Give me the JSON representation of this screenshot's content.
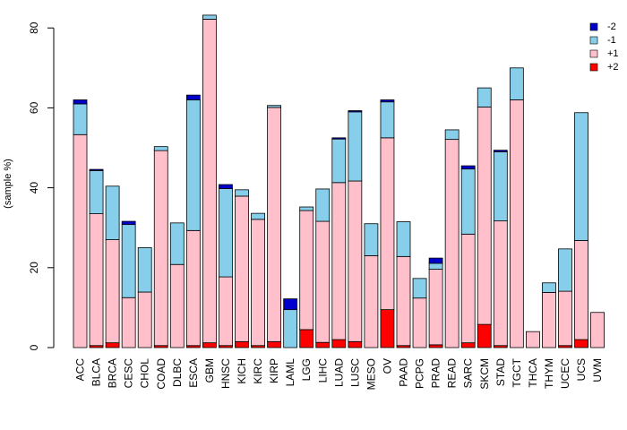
{
  "chart_data": {
    "type": "bar",
    "stacked": true,
    "title": "",
    "xlabel": "",
    "ylabel": "(sample %)",
    "ylim": [
      0,
      83
    ],
    "yticks": [
      0,
      20,
      40,
      60,
      80
    ],
    "stack_order_bottom_to_top": [
      "+2",
      "+1",
      "-1",
      "-2"
    ],
    "categories": [
      "ACC",
      "BLCA",
      "BRCA",
      "CESC",
      "CHOL",
      "COAD",
      "DLBC",
      "ESCA",
      "GBM",
      "HNSC",
      "KICH",
      "KIRC",
      "KIRP",
      "LAML",
      "LGG",
      "LIHC",
      "LUAD",
      "LUSC",
      "MESO",
      "OV",
      "PAAD",
      "PCPG",
      "PRAD",
      "READ",
      "SARC",
      "SKCM",
      "STAD",
      "TGCT",
      "THCA",
      "THYM",
      "UCEC",
      "UCS",
      "UVM"
    ],
    "series": [
      {
        "name": "+2",
        "color": "#ff0000",
        "values": [
          0,
          0.5,
          1.2,
          0,
          0,
          0.5,
          0,
          0.5,
          1.2,
          0.5,
          1.5,
          0.5,
          1.5,
          0,
          4.5,
          1.3,
          2,
          1.5,
          0,
          9.5,
          0.5,
          0,
          0.7,
          0,
          1.2,
          5.8,
          0.5,
          0,
          0,
          0,
          0.5,
          2,
          0
        ]
      },
      {
        "name": "+1",
        "color": "#ffc0cb",
        "values": [
          53.3,
          33.0,
          25.8,
          12.5,
          13.9,
          48.8,
          20.8,
          28.8,
          81.0,
          17.2,
          36.4,
          31.6,
          58.6,
          0,
          29.8,
          30.3,
          39.3,
          40.2,
          23.0,
          43.0,
          22.3,
          12.4,
          18.9,
          52.1,
          27.2,
          54.4,
          31.2,
          62.0,
          4.0,
          13.8,
          13.6,
          24.8,
          8.8
        ]
      },
      {
        "name": "-1",
        "color": "#87ceeb",
        "values": [
          7.7,
          10.8,
          13.4,
          18.3,
          11.1,
          1.0,
          10.4,
          32.7,
          1.0,
          22.1,
          1.6,
          1.5,
          0.5,
          9.5,
          0.9,
          8.1,
          10.9,
          17.3,
          8.0,
          9.0,
          8.7,
          4.9,
          1.5,
          2.4,
          16.3,
          4.8,
          17.3,
          8.0,
          0,
          2.4,
          10.6,
          32.0,
          0
        ]
      },
      {
        "name": "-2",
        "color": "#0000cd",
        "values": [
          1.0,
          0.3,
          0,
          0.8,
          0,
          0,
          0,
          1.2,
          0,
          1.0,
          0,
          0,
          0,
          2.7,
          0,
          0,
          0.3,
          0.3,
          0,
          0.5,
          0,
          0,
          1.3,
          0,
          0.8,
          0,
          0.4,
          0,
          0,
          0,
          0,
          0,
          0
        ]
      }
    ],
    "legend": {
      "placement": "top-right",
      "entries": [
        "-2",
        "-1",
        "+1",
        "+2"
      ]
    }
  }
}
